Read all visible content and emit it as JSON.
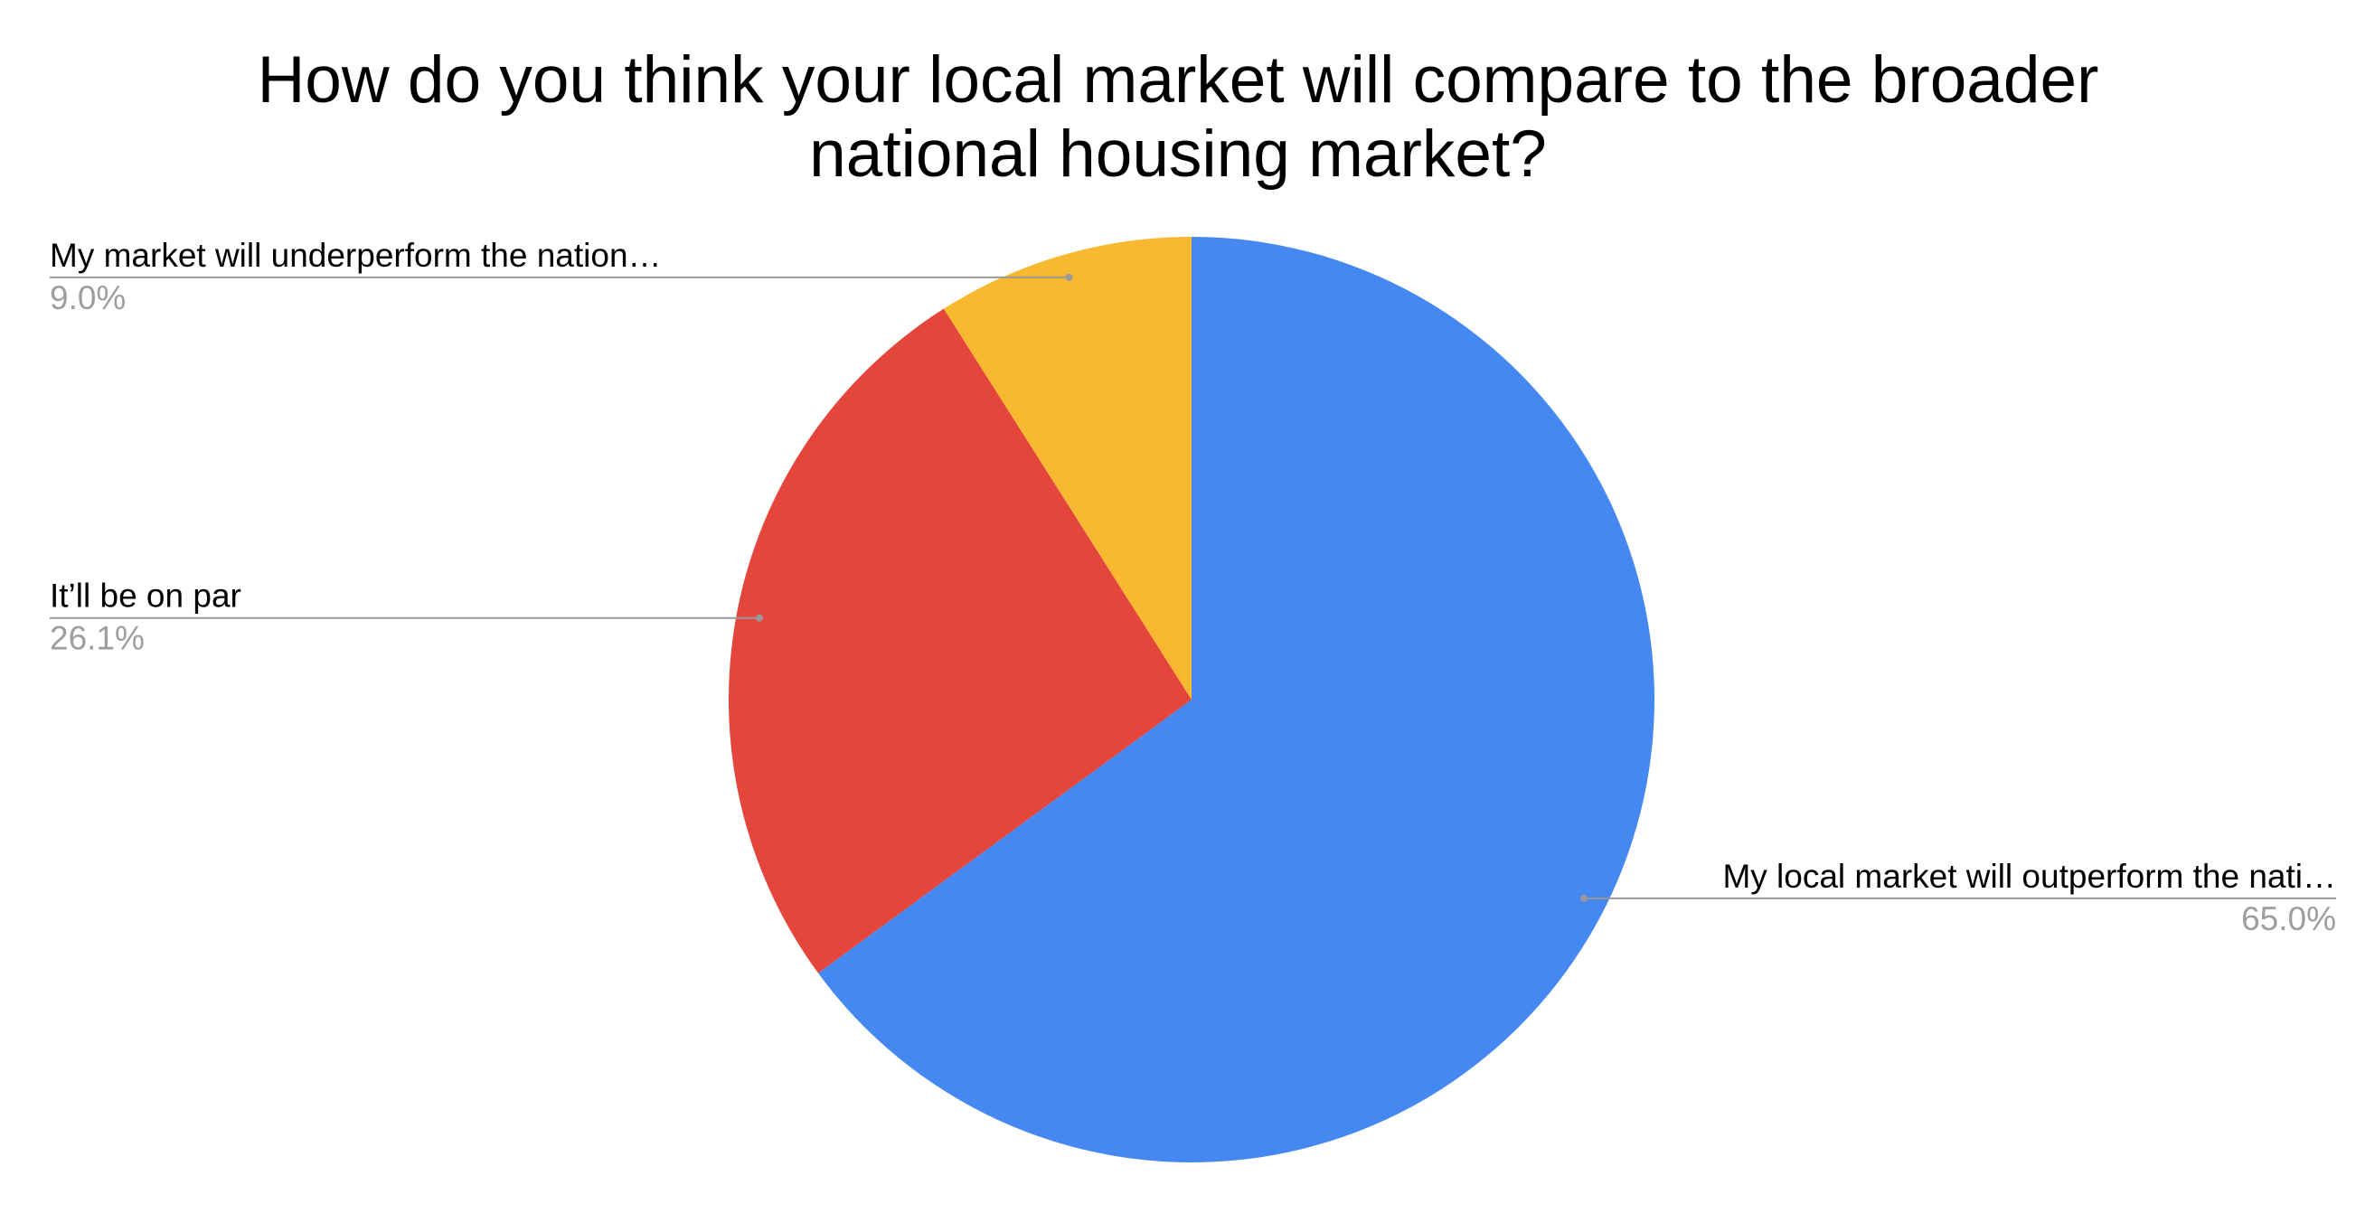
{
  "chart_data": {
    "type": "pie",
    "title": "How do you think your local market will compare to the broader\nnational housing market?",
    "categories": [
      "My local market will outperform the nati…",
      "It’ll be on par",
      "My market will underperform the nation…"
    ],
    "values": [
      65.0,
      26.1,
      9.0
    ],
    "value_labels": [
      "65.0%",
      "26.1%",
      "9.0%"
    ],
    "colors": [
      "#4688f1",
      "#e5463c",
      "#f8b830"
    ]
  }
}
